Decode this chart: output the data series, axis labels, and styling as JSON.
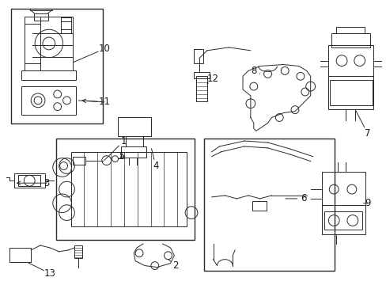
{
  "bg_color": "#ffffff",
  "line_color": "#2a2a2a",
  "label_color": "#1a1a1a",
  "fig_w": 4.89,
  "fig_h": 3.6,
  "dpi": 100
}
